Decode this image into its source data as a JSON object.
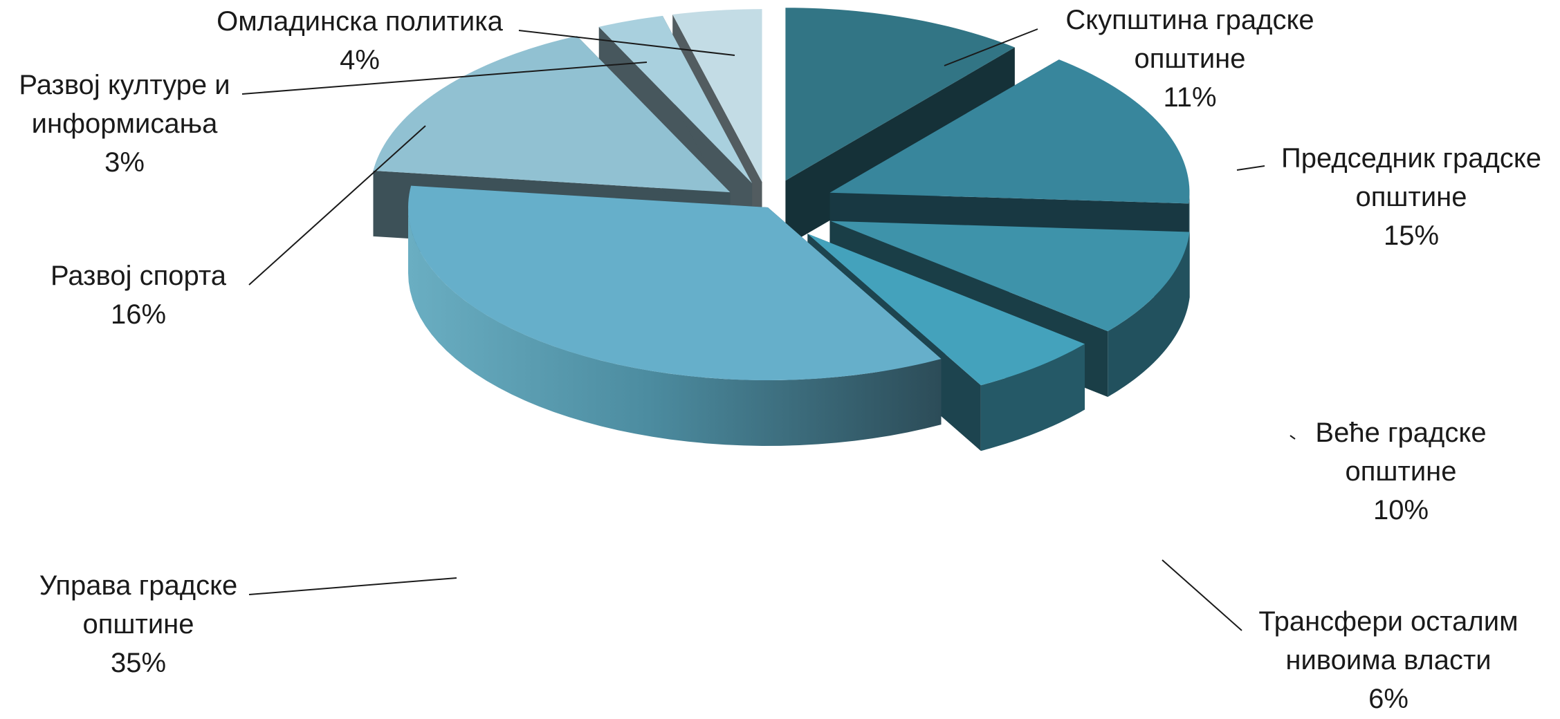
{
  "chart_data": {
    "type": "pie",
    "title": "",
    "style": "3d-exploded",
    "slices": [
      {
        "label": "Скупштина градске општине",
        "label_lines": [
          "Скупштина градске",
          "општине"
        ],
        "value": 11,
        "percent_label": "11%",
        "color": "#327585"
      },
      {
        "label": "Председник градске општине",
        "label_lines": [
          "Председник градске",
          "општине"
        ],
        "value": 15,
        "percent_label": "15%",
        "color": "#38869c"
      },
      {
        "label": "Веће градске општине",
        "label_lines": [
          "Веће градске",
          "општине"
        ],
        "value": 10,
        "percent_label": "10%",
        "color": "#3e93aa"
      },
      {
        "label": "Трансфери осталим нивоима власти",
        "label_lines": [
          "Трансфери осталим",
          "нивоима власти"
        ],
        "value": 6,
        "percent_label": "6%",
        "color": "#44a2bc"
      },
      {
        "label": "Управа градске општине",
        "label_lines": [
          "Управа градске",
          "општине"
        ],
        "value": 35,
        "percent_label": "35%",
        "color": "#66afca"
      },
      {
        "label": "Развој спорта",
        "label_lines": [
          "Развој спорта"
        ],
        "value": 16,
        "percent_label": "16%",
        "color": "#91c1d2"
      },
      {
        "label": "Развој културе и информисања",
        "label_lines": [
          "Развој културе и",
          "информисања"
        ],
        "value": 3,
        "percent_label": "3%",
        "color": "#a9d0de"
      },
      {
        "label": "Омладинска политика",
        "label_lines": [
          "Омладинска политика"
        ],
        "value": 4,
        "percent_label": "4%",
        "color": "#c3dce5"
      }
    ]
  }
}
